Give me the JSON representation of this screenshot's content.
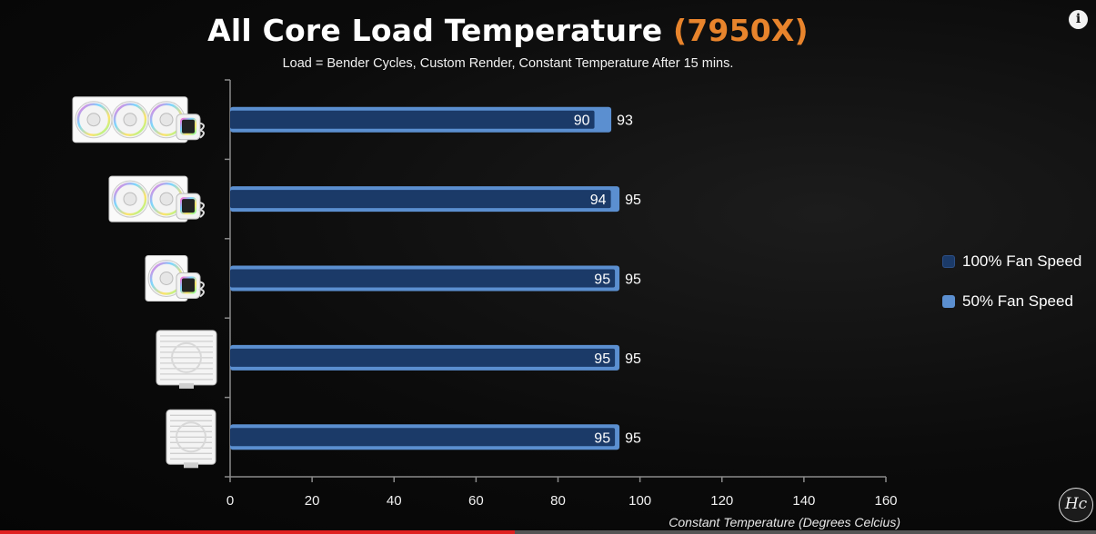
{
  "title": {
    "main": "All Core Load Temperature",
    "accent": "(7950X)",
    "accent_color": "#e8842c"
  },
  "subtitle": "Load = Bender Cycles, Custom Render, Constant Temperature After 15 mins.",
  "legend": [
    {
      "label": "100% Fan Speed",
      "color": "#1b3a68"
    },
    {
      "label": "50% Fan Speed",
      "color": "#5b8fd0"
    }
  ],
  "info_icon": {
    "name": "info-icon",
    "glyph": "i"
  },
  "logo": {
    "text": "Hc"
  },
  "video_progress": 0.47,
  "chart_data": {
    "type": "bar",
    "orientation": "horizontal",
    "title": "All Core Load Temperature (7950X)",
    "subtitle": "Load = Bender Cycles, Custom Render, Constant Temperature After 15 mins.",
    "xlabel": "Constant Temperature (Degrees Celcius)",
    "ylabel": "",
    "xlim": [
      0,
      160
    ],
    "xticks": [
      0,
      20,
      40,
      60,
      80,
      100,
      120,
      140,
      160
    ],
    "categories": [
      "cooler-360-aio",
      "cooler-240-aio",
      "cooler-120-aio",
      "cooler-dual-tower-air",
      "cooler-single-tower-air"
    ],
    "category_images": [
      "360mm AIO",
      "240mm AIO",
      "120mm AIO",
      "dual tower air cooler",
      "single tower air cooler"
    ],
    "series": [
      {
        "name": "100% Fan Speed",
        "values": [
          90,
          94,
          95,
          95,
          95
        ],
        "color": "#1b3a68"
      },
      {
        "name": "50% Fan Speed",
        "values": [
          93,
          95,
          95,
          95,
          95
        ],
        "color": "#5b8fd0"
      }
    ],
    "grid": false,
    "legend_position": "right"
  }
}
